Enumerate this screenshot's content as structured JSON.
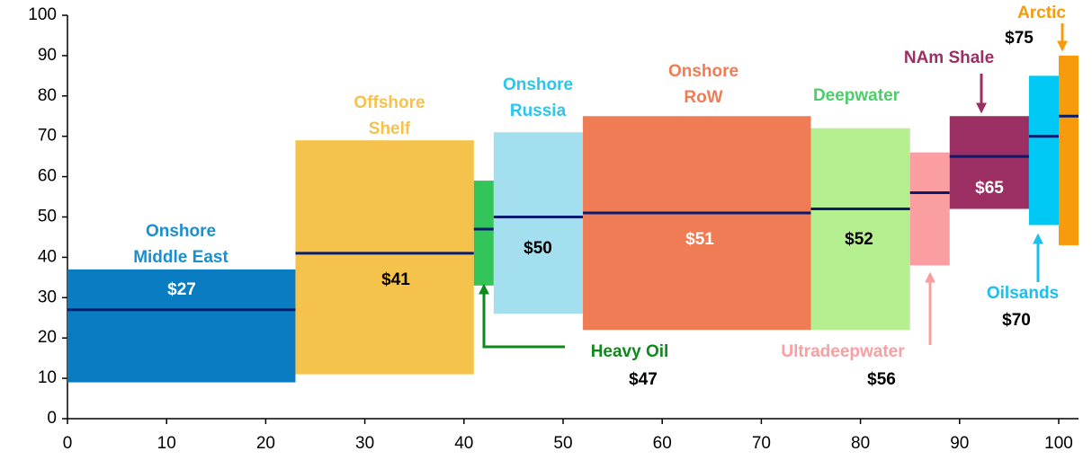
{
  "chart_data": {
    "type": "variable-width-bar",
    "labels": [
      [
        "Onshore",
        "Middle East"
      ],
      [
        "Offshore",
        "Shelf"
      ],
      [
        "Heavy Oil"
      ],
      [
        "Onshore",
        "Russia"
      ],
      [
        "Onshore",
        "RoW"
      ],
      [
        "Deepwater"
      ],
      [
        "Ultradeepwater"
      ],
      [
        "NAm Shale"
      ],
      [
        "Oilsands"
      ],
      [
        "Arctic"
      ]
    ],
    "x_start": [
      0,
      23,
      41,
      43,
      52,
      75,
      85,
      89,
      97,
      100
    ],
    "x_end": [
      23,
      41,
      43,
      52,
      75,
      85,
      89,
      97,
      100,
      102
    ],
    "low": [
      9,
      11,
      33,
      26,
      22,
      22,
      38,
      52,
      48,
      43
    ],
    "high": [
      37,
      69,
      59,
      71,
      75,
      72,
      66,
      75,
      85,
      90
    ],
    "values": [
      27,
      41,
      47,
      50,
      51,
      52,
      56,
      65,
      70,
      75
    ],
    "value_labels": [
      "$27",
      "$41",
      "$47",
      "$50",
      "$51",
      "$52",
      "$56",
      "$65",
      "$70",
      "$75"
    ],
    "colors": [
      "#0a7cc1",
      "#f5c24c",
      "#33c45a",
      "#a3dfee",
      "#f07c55",
      "#b5ef8f",
      "#fb9ea2",
      "#9b2f63",
      "#00c8f5",
      "#f79a0b"
    ],
    "median_color": "#0a1a6e",
    "xlim": [
      0,
      102
    ],
    "xticks": [
      0,
      10,
      20,
      30,
      40,
      50,
      60,
      70,
      80,
      90,
      100
    ],
    "ylim": [
      0,
      100
    ],
    "yticks": [
      0,
      10,
      20,
      30,
      40,
      50,
      60,
      70,
      80,
      90,
      100
    ]
  }
}
